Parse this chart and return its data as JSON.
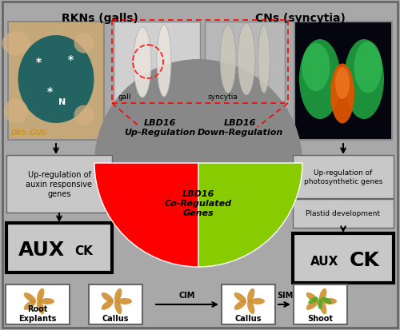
{
  "bg_color": "#a8a8a8",
  "title_left": "RKNs (galls)",
  "title_right": "CNs (syncytia)",
  "pie_red_color": "#ff0000",
  "pie_green_color": "#88cc00",
  "pie_gray_color": "#888888",
  "pie_red_label": "LBD16\nUp-Regulation",
  "pie_green_label": "LBD16\nDown-Regulation",
  "pie_gray_label": "LBD16\nCo-Regulated\nGenes",
  "left_box_text": "Up-regulation of\nauxin responsive\ngenes",
  "right_box_text1": "Up-regulation of\nphotosynthetic genes",
  "right_box_text2": "Plastid development",
  "bottom_labels": [
    "Root\nExplants",
    "Callus",
    "Callus",
    "Shoot"
  ],
  "cim_label": "CIM",
  "sim_label": "SIM",
  "dr5_label": "DR5::GUS",
  "gall_label": "gall",
  "syncytia_label": "syncytia",
  "n_label": "N",
  "dashed_color": "#ff2222",
  "box_bg": "#c8c8c8",
  "white": "#ffffff",
  "black": "#000000"
}
